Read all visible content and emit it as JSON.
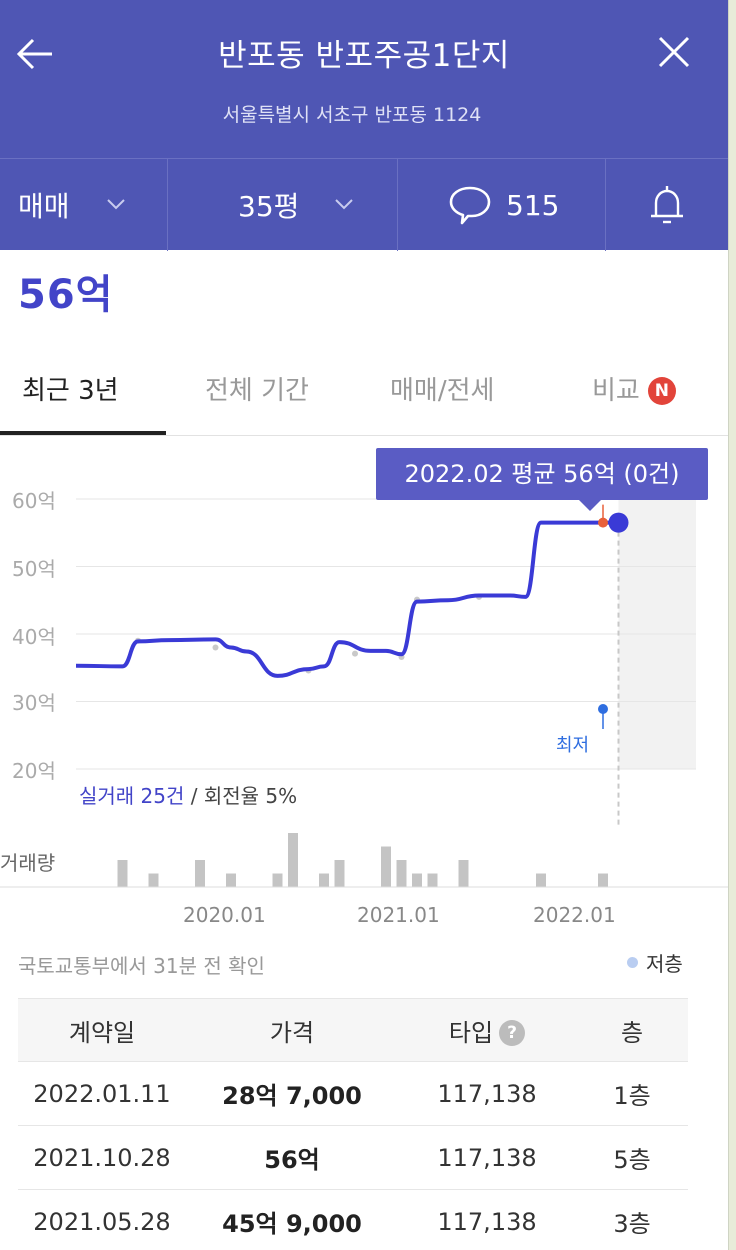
{
  "header": {
    "title": "반포동 반포주공1단지",
    "subtitle": "서울특별시 서초구 반포동 1124"
  },
  "filters": {
    "trade_type": "매매",
    "size": "35평",
    "comment_count": "515"
  },
  "price": "56억",
  "tabs": [
    {
      "label": "최근 3년"
    },
    {
      "label": "전체 기간"
    },
    {
      "label": "매매/전세"
    },
    {
      "label": "비교",
      "badge": "N"
    }
  ],
  "chart": {
    "tooltip": "2022.02 평균 56억 (0건)",
    "min_marker_label": "최저",
    "deals_count": "실거래 25건",
    "deals_rest": " / 회전율 5%",
    "volume_label": "거래량"
  },
  "colors": {
    "header_bg": "#4f56b4",
    "accent": "#4244c8",
    "line": "#3a3ad6",
    "badge_red": "#e2443a",
    "min_blue": "#2f6ee0",
    "high_orange": "#e8603a"
  },
  "chart_data": {
    "type": "line",
    "yticks": [
      "60억",
      "50억",
      "40억",
      "30억",
      "20억"
    ],
    "ylim": [
      20,
      60
    ],
    "y_unit": "억",
    "xticks": [
      "2020.01",
      "2021.01",
      "2022.01"
    ],
    "xlim": [
      "2019.03",
      "2022.07"
    ],
    "series": [
      {
        "x": [
          "2019.03",
          "2019.06",
          "2019.07",
          "2019.09",
          "2019.12",
          "2020.01",
          "2020.02",
          "2020.04",
          "2020.06",
          "2020.07",
          "2020.08",
          "2020.10",
          "2020.11",
          "2020.12",
          "2021.01",
          "2021.03",
          "2021.05",
          "2021.07",
          "2021.08",
          "2021.09",
          "2021.10",
          "2022.01",
          "2022.02"
        ],
        "values": [
          35.3,
          35.2,
          38.9,
          39.1,
          39.2,
          38.0,
          37.4,
          33.8,
          34.8,
          35.2,
          38.8,
          37.5,
          37.5,
          37.0,
          44.8,
          45.0,
          45.7,
          45.7,
          45.5,
          56.5,
          56.5,
          56.5,
          56.5
        ]
      }
    ],
    "deal_points": {
      "x": [
        "2019.07",
        "2019.12",
        "2020.06",
        "2020.09",
        "2020.12",
        "2021.01",
        "2021.05"
      ],
      "values": [
        39.0,
        38.0,
        34.6,
        37.1,
        36.6,
        45.1,
        45.5
      ]
    },
    "volume": {
      "x": [
        "2019.06",
        "2019.08",
        "2019.11",
        "2020.01",
        "2020.04",
        "2020.05",
        "2020.07",
        "2020.08",
        "2020.11",
        "2020.12",
        "2021.01",
        "2021.02",
        "2021.04",
        "2021.09",
        "2022.01"
      ],
      "values": [
        2,
        1,
        2,
        1,
        1,
        4,
        1,
        2,
        3,
        2,
        1,
        1,
        2,
        1,
        1
      ]
    },
    "highlight": {
      "x": "2022.02",
      "value": 56.5
    },
    "min_marker_x": "2022.01"
  },
  "updated_text": "국토교통부에서 31분 전 확인",
  "legend_low_floor": "저층",
  "table": {
    "headers": [
      "계약일",
      "가격",
      "타입",
      "층"
    ],
    "rows": [
      [
        "2022.01.11",
        "28억 7,000",
        "117,138",
        "1층"
      ],
      [
        "2021.10.28",
        "56억",
        "117,138",
        "5층"
      ],
      [
        "2021.05.28",
        "45억 9,000",
        "117,138",
        "3층"
      ]
    ]
  }
}
